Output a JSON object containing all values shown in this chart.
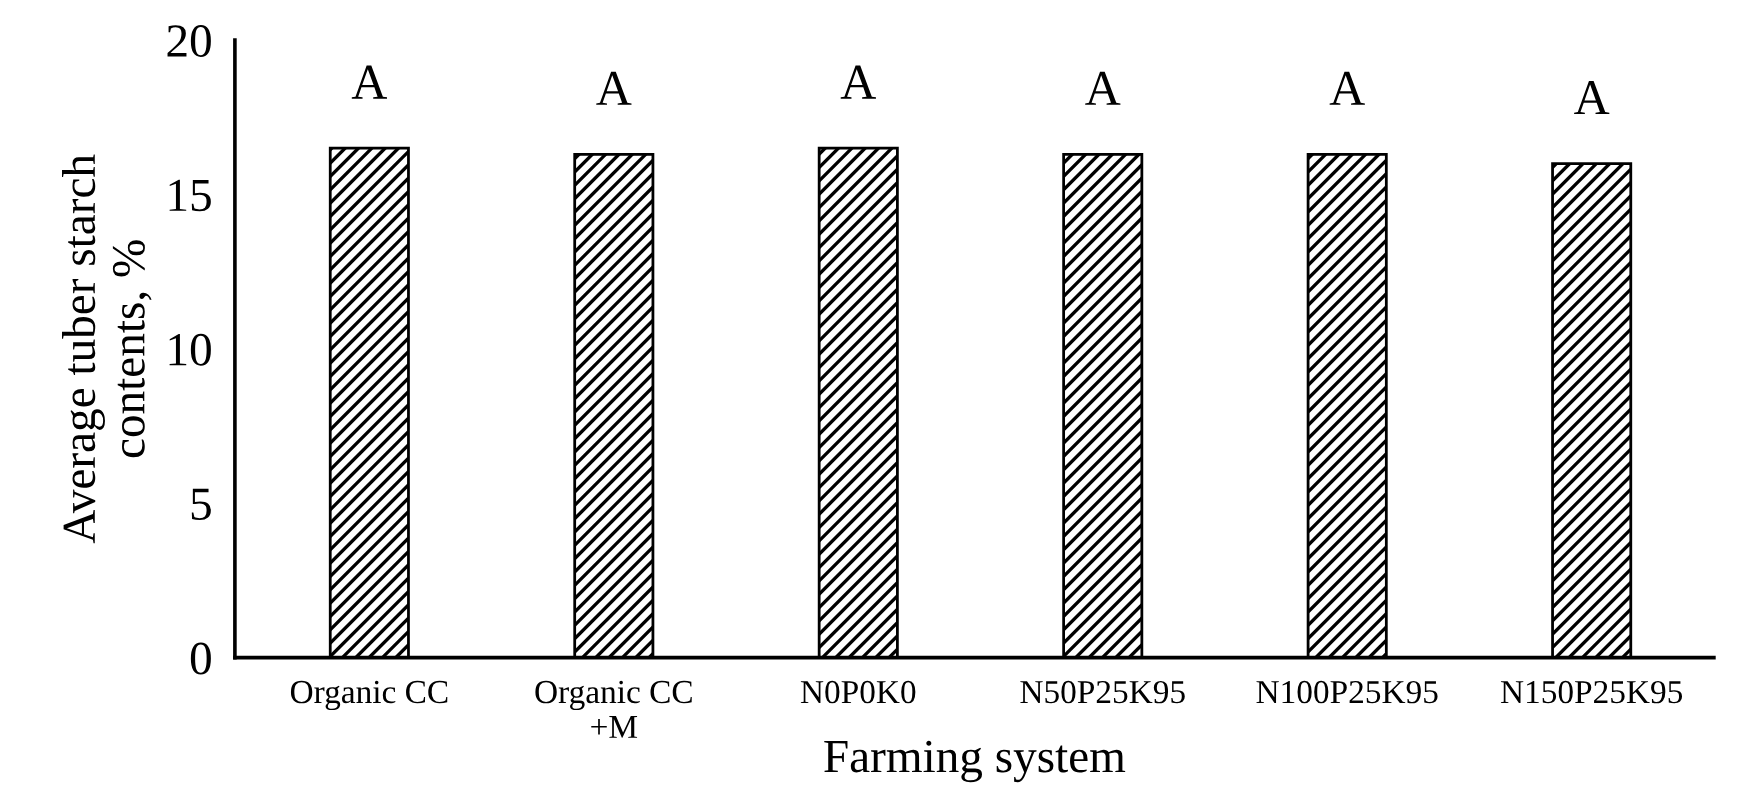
{
  "chart_data": {
    "type": "bar",
    "xlabel": "Farming system",
    "ylabel": "Average tuber starch\ncontents, %",
    "categories": [
      "Organic CC",
      "Organic CC\n+M",
      "N0P0K0",
      "N50P25K95",
      "N100P25K95",
      "N150P25K95"
    ],
    "values": [
      16.5,
      16.3,
      16.5,
      16.3,
      16.3,
      16.0
    ],
    "color": "#000000",
    "ylim": [
      0,
      20
    ],
    "yticks": [
      0,
      5,
      10,
      15,
      20
    ],
    "grid": false,
    "annotations": [
      {
        "text": "A",
        "x": "Organic CC",
        "y": 16.5
      },
      {
        "text": "A",
        "x": "Organic CC\n+M",
        "y": 16.3
      },
      {
        "text": "A",
        "x": "N0P0K0",
        "y": 16.5
      },
      {
        "text": "A",
        "x": "N50P25K95",
        "y": 16.3
      },
      {
        "text": "A",
        "x": "N100P25K95",
        "y": 16.3
      },
      {
        "text": "A",
        "x": "N150P25K95",
        "y": 16.0
      }
    ]
  }
}
